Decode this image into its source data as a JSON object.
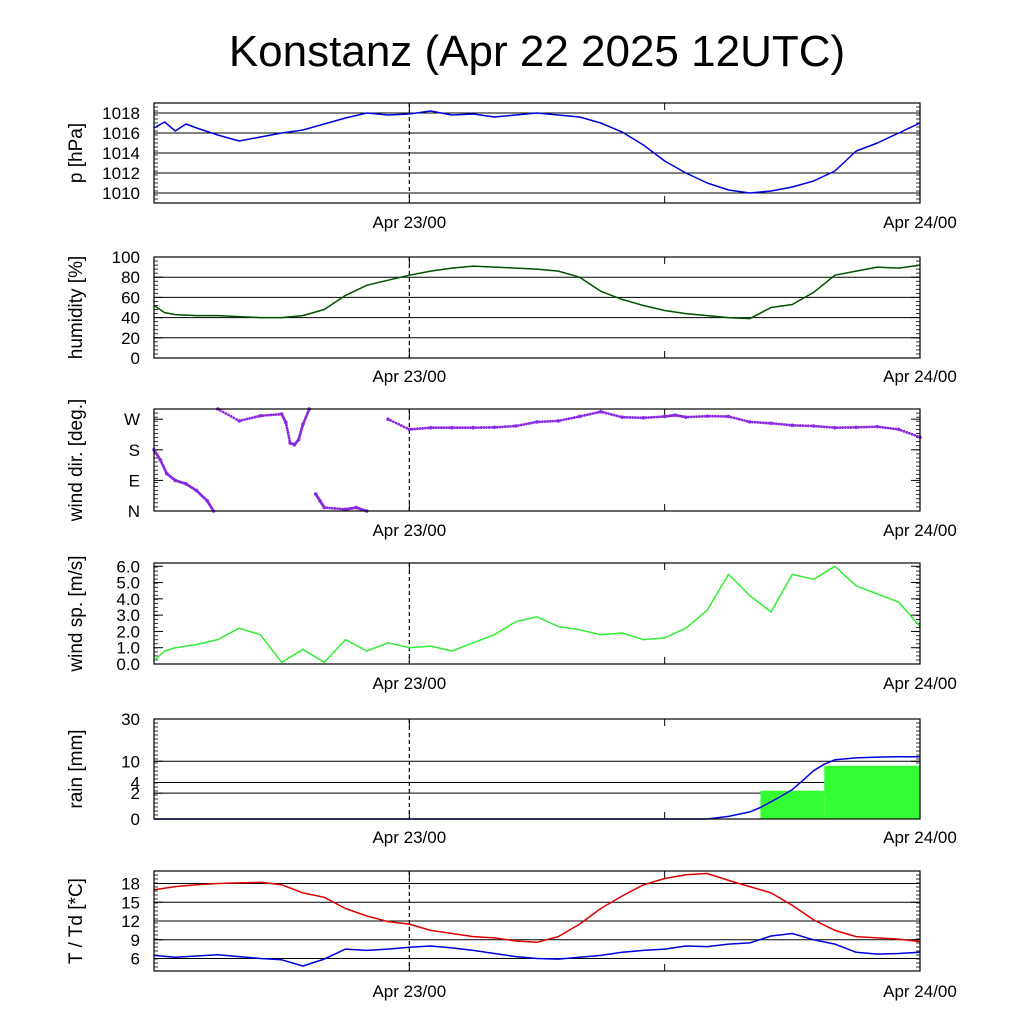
{
  "title": "Konstanz (Apr 22 2025 12UTC)",
  "x_ticks": [
    "Apr 23/00",
    "Apr 24/00"
  ],
  "chart_data": [
    {
      "id": "pressure",
      "type": "line",
      "ylabel": "p [hPa]",
      "ylim": [
        1009,
        1019
      ],
      "yticks": [
        1010,
        1012,
        1014,
        1016,
        1018
      ],
      "grid": true,
      "x": [
        0,
        0.5,
        1,
        1.5,
        2,
        3,
        4,
        5,
        6,
        7,
        8,
        9,
        10,
        11,
        12,
        13,
        14,
        15,
        16,
        17,
        18,
        19,
        20,
        21,
        22,
        23,
        24,
        25,
        26,
        27,
        28,
        29,
        30,
        31,
        32,
        33,
        34,
        35,
        36
      ],
      "series": [
        {
          "color": "#0000dd",
          "values": [
            1016.5,
            1017.1,
            1016.2,
            1016.9,
            1016.5,
            1015.8,
            1015.2,
            1015.6,
            1016.0,
            1016.3,
            1016.9,
            1017.5,
            1018.0,
            1017.8,
            1017.9,
            1018.2,
            1017.8,
            1017.9,
            1017.6,
            1017.8,
            1018.0,
            1017.8,
            1017.6,
            1017.0,
            1016.1,
            1014.8,
            1013.2,
            1012.0,
            1011.0,
            1010.3,
            1010.0,
            1010.2,
            1010.6,
            1011.2,
            1012.2,
            1014.2,
            1015.0,
            1016.0,
            1017.0
          ]
        }
      ]
    },
    {
      "id": "humidity",
      "type": "line",
      "ylabel": "humidity [%]",
      "ylim": [
        0,
        100
      ],
      "yticks": [
        0,
        20,
        40,
        60,
        80,
        100
      ],
      "grid": true,
      "x": [
        0,
        0.5,
        1,
        2,
        3,
        4,
        5,
        6,
        7,
        8,
        9,
        10,
        11,
        12,
        13,
        14,
        15,
        16,
        17,
        18,
        19,
        20,
        21,
        22,
        23,
        24,
        25,
        26,
        27,
        28,
        29,
        30,
        31,
        32,
        33,
        34,
        35,
        36
      ],
      "series": [
        {
          "color": "#005000",
          "values": [
            52,
            45,
            43,
            42,
            42,
            41,
            40,
            40,
            42,
            48,
            62,
            72,
            77,
            82,
            86,
            89,
            91,
            90,
            89,
            88,
            86,
            80,
            66,
            58,
            52,
            47,
            44,
            42,
            40,
            39,
            50,
            53,
            65,
            82,
            86,
            90,
            89,
            92
          ]
        }
      ]
    },
    {
      "id": "wind_direction",
      "type": "scatter",
      "ylabel": "wind dir. [deg.]",
      "ylim": [
        0,
        300
      ],
      "yticks": [
        0,
        90,
        180,
        270
      ],
      "yticklabels": [
        "N",
        "E",
        "S",
        "W"
      ],
      "grid": false,
      "x": [
        0,
        0.3,
        0.6,
        1,
        1.5,
        2,
        2.5,
        2.8,
        3,
        4,
        5,
        6,
        6.2,
        6.4,
        6.6,
        6.8,
        7,
        7.3,
        7.6,
        7.8,
        8,
        9,
        9.5,
        10,
        11,
        12,
        13,
        14,
        15,
        16,
        17,
        18,
        19,
        20,
        21,
        22,
        23,
        24,
        24.5,
        25,
        26,
        27,
        28,
        29,
        30,
        31,
        32,
        33,
        34,
        35,
        36
      ],
      "series": [
        {
          "color": "#8a2be2",
          "values": [
            180,
            150,
            110,
            90,
            80,
            60,
            30,
            0,
            300,
            265,
            280,
            285,
            260,
            200,
            195,
            210,
            255,
            300,
            50,
            30,
            10,
            5,
            10,
            0,
            270,
            240,
            245,
            245,
            245,
            246,
            250,
            262,
            265,
            278,
            292,
            276,
            274,
            278,
            282,
            276,
            279,
            278,
            262,
            258,
            252,
            250,
            245,
            246,
            248,
            240,
            217
          ]
        }
      ]
    },
    {
      "id": "wind_speed",
      "type": "line",
      "ylabel": "wind sp. [m/s]",
      "ylim": [
        0,
        6.2
      ],
      "yticks": [
        0.0,
        1.0,
        2.0,
        3.0,
        4.0,
        5.0,
        6.0
      ],
      "yticklabels": [
        "0.0",
        "1.0",
        "2.0",
        "3.0",
        "4.0",
        "5.0",
        "6.0"
      ],
      "grid": false,
      "x": [
        0,
        0.5,
        1,
        2,
        3,
        4,
        5,
        6,
        7,
        8,
        9,
        10,
        11,
        12,
        13,
        14,
        15,
        16,
        17,
        18,
        19,
        20,
        21,
        22,
        23,
        24,
        25,
        26,
        27,
        28,
        29,
        30,
        31,
        32,
        33,
        34,
        35,
        36
      ],
      "series": [
        {
          "color": "#33ee33",
          "values": [
            0.2,
            0.8,
            1.0,
            1.2,
            1.5,
            2.2,
            1.8,
            0.1,
            0.9,
            0.1,
            1.5,
            0.8,
            1.3,
            1.0,
            1.1,
            0.8,
            1.3,
            1.8,
            2.6,
            2.9,
            2.3,
            2.1,
            1.8,
            1.9,
            1.5,
            1.6,
            2.2,
            3.3,
            5.5,
            4.2,
            3.2,
            5.5,
            5.2,
            6.0,
            4.8,
            4.3,
            3.8,
            2.3
          ]
        }
      ]
    },
    {
      "id": "rain",
      "type": "area",
      "ylabel": "rain [mm]",
      "ylim": [
        0,
        30
      ],
      "yticks": [
        0,
        2,
        4,
        10,
        30
      ],
      "scale": "power-0.5",
      "grid": true,
      "bars": {
        "color": "#33ff33",
        "x_start": [
          28.5,
          31.5
        ],
        "x_end": [
          31.5,
          36
        ],
        "values": [
          2.4,
          8.5
        ]
      },
      "x": [
        0,
        26,
        27,
        28,
        28.5,
        29,
        29.5,
        30,
        30.5,
        31,
        31.5,
        32,
        33,
        34,
        35,
        36
      ],
      "series": [
        {
          "color": "#0000dd",
          "values": [
            0,
            0,
            0.02,
            0.15,
            0.4,
            0.9,
            1.6,
            2.6,
            4.5,
            7,
            9,
            10.5,
            11.2,
            11.5,
            11.6,
            11.6
          ]
        }
      ]
    },
    {
      "id": "temperature",
      "type": "line",
      "ylabel": "T / Td [*C]",
      "ylim": [
        4,
        20
      ],
      "yticks": [
        6,
        9,
        12,
        15,
        18
      ],
      "grid": true,
      "x": [
        0,
        1,
        2,
        3,
        4,
        5,
        6,
        7,
        8,
        9,
        10,
        11,
        12,
        13,
        14,
        15,
        16,
        17,
        18,
        19,
        20,
        21,
        22,
        23,
        24,
        25,
        26,
        27,
        28,
        29,
        30,
        31,
        32,
        33,
        34,
        35,
        36
      ],
      "series": [
        {
          "color": "#dd0000",
          "values": [
            17.0,
            17.5,
            17.8,
            18.0,
            18.1,
            18.2,
            17.8,
            16.5,
            15.8,
            14.0,
            12.8,
            11.9,
            11.5,
            10.5,
            10.0,
            9.5,
            9.3,
            8.8,
            8.6,
            9.5,
            11.5,
            14.0,
            16.0,
            17.8,
            18.8,
            19.4,
            19.6,
            18.5,
            17.5,
            16.5,
            14.5,
            12.2,
            10.5,
            9.5,
            9.3,
            9.1,
            8.7
          ]
        },
        {
          "color": "#0000dd",
          "values": [
            6.5,
            6.2,
            6.4,
            6.6,
            6.3,
            6.0,
            5.8,
            4.8,
            5.9,
            7.5,
            7.3,
            7.5,
            7.8,
            8.0,
            7.7,
            7.3,
            6.8,
            6.3,
            6.0,
            5.9,
            6.2,
            6.5,
            7.0,
            7.3,
            7.5,
            8.0,
            7.9,
            8.3,
            8.5,
            9.6,
            10.0,
            9.0,
            8.3,
            7.0,
            6.7,
            6.8,
            7.0
          ]
        }
      ]
    }
  ]
}
